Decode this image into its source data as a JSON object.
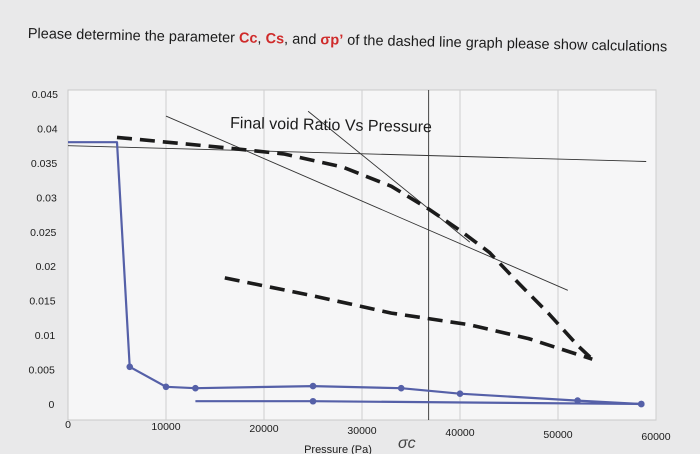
{
  "question": {
    "part1": "Please determine the parameter ",
    "cc": "Cc",
    "sep1": ", ",
    "cs": "Cs",
    "sep2": ", and ",
    "sp": "σp’",
    "part2": " of the dashed line graph please show calculations"
  },
  "annotation": {
    "handwritten": "σc"
  },
  "chart_data": {
    "type": "line",
    "title": "Final void Ratio Vs Pressure",
    "xlabel": "Pressure (Pa)",
    "ylabel": "",
    "xlim": [
      0,
      60000
    ],
    "ylim": [
      0,
      0.045
    ],
    "x_ticks": [
      {
        "value": 0,
        "label": "0"
      },
      {
        "value": 10000,
        "label": "10000"
      },
      {
        "value": 20000,
        "label": "20000"
      },
      {
        "value": 30000,
        "label": "30000"
      },
      {
        "value": 40000,
        "label": "40000"
      },
      {
        "value": 50000,
        "label": "50000"
      },
      {
        "value": 60000,
        "label": "60000"
      }
    ],
    "y_ticks": [
      {
        "value": 0,
        "label": "0"
      },
      {
        "value": 0.005,
        "label": "0.005"
      },
      {
        "value": 0.01,
        "label": "0.01"
      },
      {
        "value": 0.015,
        "label": "0.015"
      },
      {
        "value": 0.02,
        "label": "0.02"
      },
      {
        "value": 0.025,
        "label": "0.025"
      },
      {
        "value": 0.03,
        "label": "0.03"
      },
      {
        "value": 0.035,
        "label": "0.035"
      },
      {
        "value": 0.04,
        "label": "0.04"
      },
      {
        "value": 0.045,
        "label": "0.045"
      }
    ],
    "grid": true,
    "series": [
      {
        "style": "solid",
        "color": "#5560a8",
        "points": [
          [
            0,
            0.038
          ],
          [
            5000,
            0.038
          ],
          [
            6300,
            0.0054
          ],
          [
            10000,
            0.0025
          ],
          [
            13000,
            0.0023
          ],
          [
            25000,
            0.0026
          ],
          [
            34000,
            0.0023
          ],
          [
            40000,
            0.0015
          ],
          [
            52000,
            0.0005
          ],
          [
            58500,
            0.0
          ]
        ]
      },
      {
        "style": "solid",
        "color": "#5560a8",
        "points": [
          [
            13000,
            0.0004
          ],
          [
            25000,
            0.0004
          ],
          [
            58500,
            0.0
          ]
        ]
      },
      {
        "style": "dashed",
        "color": "#1b1b1b",
        "points": [
          [
            5000,
            0.0387
          ],
          [
            16000,
            0.0372
          ],
          [
            22000,
            0.0363
          ],
          [
            28000,
            0.0344
          ],
          [
            33000,
            0.0316
          ],
          [
            36800,
            0.0283
          ],
          [
            40000,
            0.0252
          ],
          [
            43000,
            0.022
          ],
          [
            46000,
            0.0175
          ],
          [
            49000,
            0.0132
          ],
          [
            52000,
            0.0085
          ],
          [
            53500,
            0.0065
          ]
        ]
      },
      {
        "style": "dashed",
        "color": "#1b1b1b",
        "points": [
          [
            16000,
            0.0183
          ],
          [
            25000,
            0.0157
          ],
          [
            33000,
            0.0132
          ],
          [
            41000,
            0.0115
          ],
          [
            47000,
            0.0095
          ],
          [
            53500,
            0.0065
          ]
        ]
      }
    ],
    "construction_lines": [
      {
        "points": [
          [
            10000,
            0.0418
          ],
          [
            51000,
            0.0165
          ]
        ]
      },
      {
        "points": [
          [
            24500,
            0.0425
          ],
          [
            41000,
            0.0235
          ]
        ]
      },
      {
        "points": [
          [
            0,
            0.0375
          ],
          [
            59000,
            0.0352
          ]
        ]
      }
    ],
    "vertical_line_x": 36800
  }
}
